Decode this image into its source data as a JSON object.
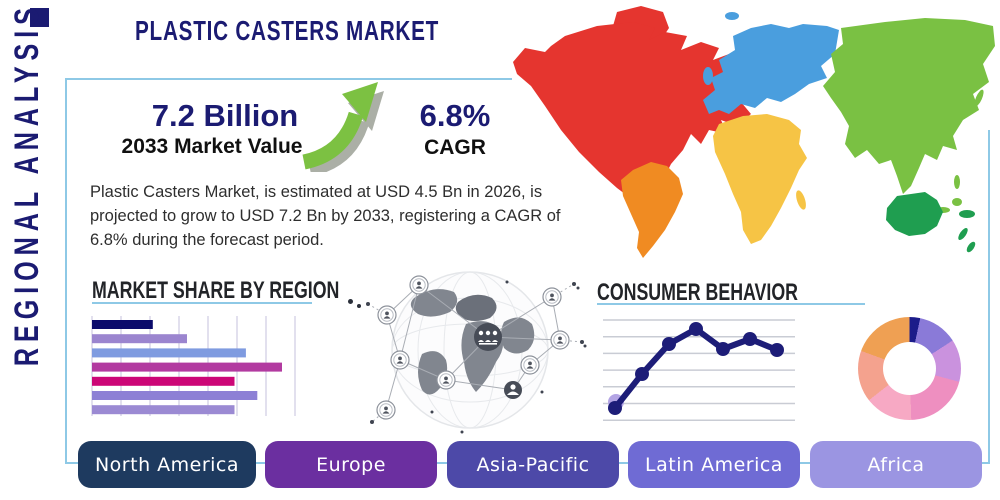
{
  "header": {
    "title": "PLASTIC CASTERS MARKET",
    "side_label": "REGIONAL ANALYSIS"
  },
  "stats": {
    "market_value": "7.2 Billion",
    "market_value_caption": "2033 Market Value",
    "cagr_value": "6.8%",
    "cagr_caption": "CAGR"
  },
  "description": "Plastic Casters Market, is estimated at USD 4.5 Bn in 2026, is projected to grow to USD 7.2 Bn by 2033, registering a CAGR of 6.8% during the forecast period.",
  "colors": {
    "navy": "#1b1b72",
    "heading": "#222428",
    "line_blue": "#8ec9e6",
    "arrow_green": "#7cc142",
    "arrow_shadow": "#abafa6"
  },
  "regions": [
    {
      "label": "North America",
      "color": "#1e3a5f"
    },
    {
      "label": "Europe",
      "color": "#6b2fa0"
    },
    {
      "label": "Asia-Pacific",
      "color": "#4d49a8"
    },
    {
      "label": "Latin America",
      "color": "#6f6bd4"
    },
    {
      "label": "Africa",
      "color": "#9b95e2"
    }
  ],
  "map": {
    "region_colors": {
      "north-america": "#e5352f",
      "greenland": "#e5352f",
      "south-america": "#f08b22",
      "europe": "#4a9ede",
      "africa": "#f6c445",
      "asia": "#7ac143",
      "oceania": "#1f9e50"
    }
  },
  "chart_data": [
    {
      "type": "bar",
      "title": "MARKET SHARE BY REGION",
      "orientation": "horizontal",
      "categories": [
        "",
        "",
        "",
        "",
        "",
        "",
        ""
      ],
      "values": [
        32,
        50,
        81,
        100,
        75,
        87,
        75
      ],
      "unit": "relative length, max bar = 100",
      "bar_colors": [
        "#0b0b6b",
        "#9b85cf",
        "#7f9be0",
        "#b23aa0",
        "#cc0677",
        "#8d80d5",
        "#9b8ad3"
      ],
      "grid": "vertical gridlines, no axis labels visible",
      "xlim": [
        0,
        107
      ]
    },
    {
      "type": "line",
      "title": "CONSUMER BEHAVIOR",
      "x": [
        1,
        2,
        3,
        4,
        5,
        6,
        7
      ],
      "values": [
        12,
        46,
        76,
        91,
        71,
        81,
        70
      ],
      "ylim": [
        0,
        100
      ],
      "line_color": "#1d1d78",
      "marker": "circle",
      "first_marker_halo_color": "#b3a4e4",
      "grid": "horizontal gridlines, no axis labels visible"
    },
    {
      "type": "pie",
      "style": "donut",
      "labels_visible": false,
      "segments": [
        {
          "color": "#1c1c8a",
          "degrees": 12
        },
        {
          "color": "#8a7ad8",
          "degrees": 45
        },
        {
          "color": "#ca92de",
          "degrees": 48
        },
        {
          "color": "#ee8fc0",
          "degrees": 73
        },
        {
          "color": "#f7a9c4",
          "degrees": 54
        },
        {
          "color": "#f4a28e",
          "degrees": 58
        },
        {
          "color": "#efa053",
          "degrees": 70
        }
      ]
    }
  ]
}
